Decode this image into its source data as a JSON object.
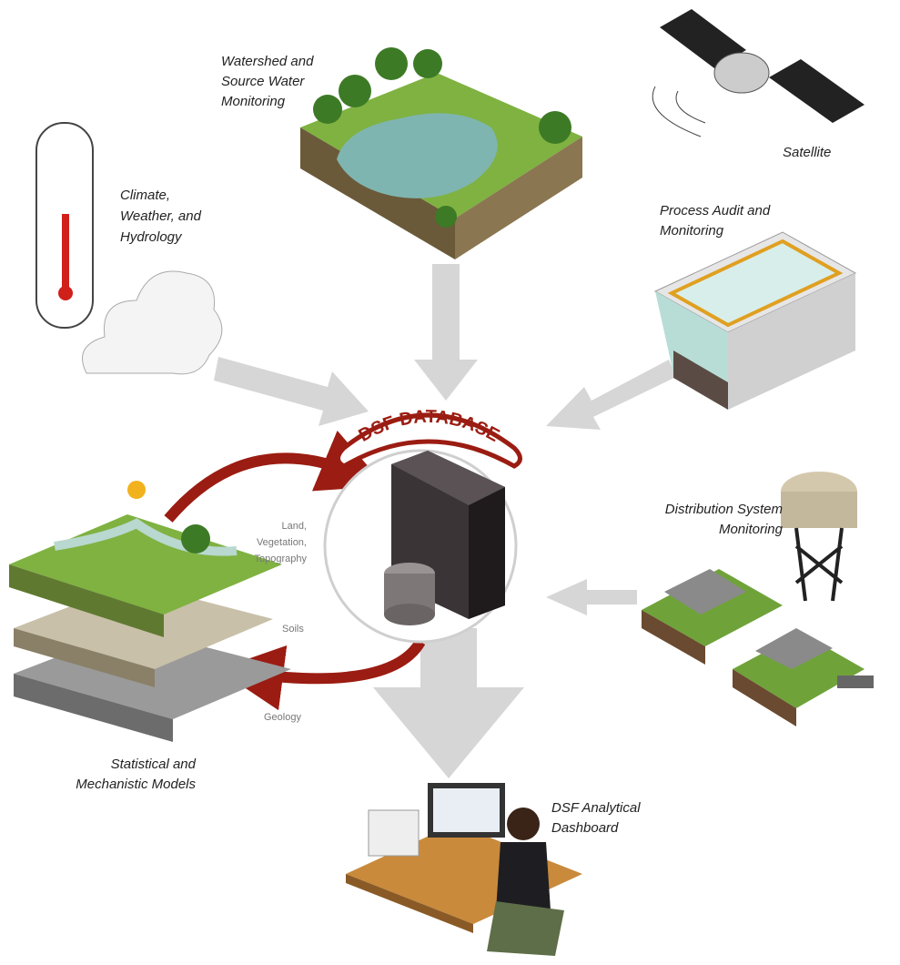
{
  "center": {
    "label": "DSF DATABASE"
  },
  "nodes": [
    {
      "label": [
        "Watershed and",
        "Source Water",
        "Monitoring"
      ]
    },
    {
      "label": [
        "Satellite"
      ]
    },
    {
      "label": [
        "Climate,",
        "Weather, and",
        "Hydrology"
      ]
    },
    {
      "label": [
        "Process Audit and",
        "Monitoring"
      ]
    },
    {
      "label": [
        "Distribution System",
        "Monitoring"
      ]
    },
    {
      "label": [
        "Statistical and",
        "Mechanistic Models"
      ]
    },
    {
      "label": [
        "DSF Analytical",
        "Dashboard"
      ]
    }
  ],
  "layers": [
    {
      "label": [
        "Land,",
        "Vegetation,",
        "Topography"
      ]
    },
    {
      "label": [
        "Soils"
      ]
    },
    {
      "label": [
        "Geology"
      ]
    }
  ]
}
